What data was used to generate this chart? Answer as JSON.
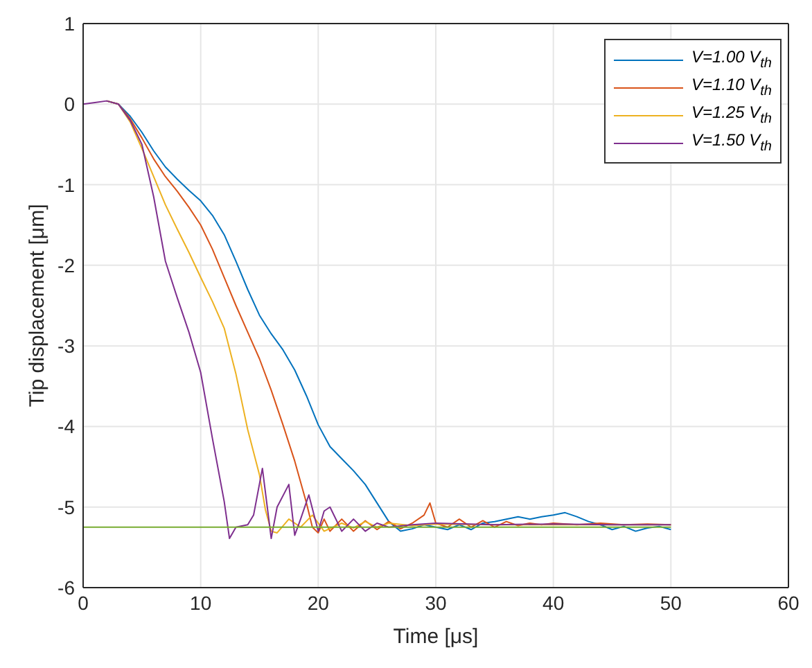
{
  "chart_data": {
    "type": "line",
    "xlabel": "Time [μs]",
    "ylabel": "Tip displacement [μm]",
    "xlim": [
      0,
      60
    ],
    "ylim": [
      -6,
      1
    ],
    "xticks": [
      0,
      10,
      20,
      30,
      40,
      50,
      60
    ],
    "yticks": [
      -6,
      -5,
      -4,
      -3,
      -2,
      -1,
      0,
      1
    ],
    "grid": true,
    "legend": "top right",
    "marker": "none",
    "line_style": "solid",
    "series": [
      {
        "name": "V=1.00 V$_{th}$",
        "color": "#0072bd",
        "x": [
          2,
          3,
          4,
          5,
          6,
          7,
          8,
          9,
          10,
          11,
          12,
          13,
          14,
          15,
          16,
          17,
          18,
          19,
          20,
          21,
          22,
          23,
          24,
          25,
          26,
          27,
          28,
          29,
          30,
          31,
          32,
          33,
          34,
          35,
          36,
          37,
          38,
          39,
          40,
          41,
          42,
          43,
          44,
          45,
          46,
          47,
          48,
          49,
          50
        ],
        "values": [
          0.04,
          0,
          -0.15,
          -0.35,
          -0.58,
          -0.78,
          -0.93,
          -1.07,
          -1.2,
          -1.38,
          -1.62,
          -1.95,
          -2.3,
          -2.62,
          -2.85,
          -3.05,
          -3.3,
          -3.62,
          -3.98,
          -4.25,
          -4.4,
          -4.55,
          -4.72,
          -4.95,
          -5.18,
          -5.3,
          -5.27,
          -5.22,
          -5.25,
          -5.28,
          -5.22,
          -5.28,
          -5.2,
          -5.18,
          -5.15,
          -5.12,
          -5.15,
          -5.12,
          -5.1,
          -5.07,
          -5.12,
          -5.18,
          -5.22,
          -5.28,
          -5.24,
          -5.3,
          -5.26,
          -5.24,
          -5.28
        ]
      },
      {
        "name": "V=1.10 V$_{th}$",
        "color": "#d95319",
        "x": [
          2,
          3,
          4,
          5,
          6,
          7,
          8,
          9,
          10,
          11,
          12,
          13,
          14,
          15,
          16,
          17,
          18,
          19,
          19.5,
          20,
          20.5,
          21,
          22,
          23,
          24,
          25,
          26,
          27,
          28,
          29,
          29.5,
          30,
          31,
          32,
          33,
          34,
          35,
          36,
          37,
          38,
          39,
          40,
          42,
          44,
          46,
          48,
          50
        ],
        "values": [
          0.04,
          0,
          -0.18,
          -0.42,
          -0.68,
          -0.9,
          -1.08,
          -1.28,
          -1.5,
          -1.8,
          -2.15,
          -2.5,
          -2.83,
          -3.16,
          -3.55,
          -3.98,
          -4.43,
          -4.95,
          -5.25,
          -5.32,
          -5.15,
          -5.3,
          -5.15,
          -5.3,
          -5.17,
          -5.28,
          -5.18,
          -5.27,
          -5.2,
          -5.1,
          -4.95,
          -5.2,
          -5.25,
          -5.15,
          -5.25,
          -5.17,
          -5.25,
          -5.18,
          -5.23,
          -5.2,
          -5.22,
          -5.2,
          -5.22,
          -5.2,
          -5.22,
          -5.21,
          -5.22
        ]
      },
      {
        "name": "V=1.25 V$_{th}$",
        "color": "#edb120",
        "x": [
          2,
          3,
          4,
          5,
          6,
          7,
          8,
          9,
          10,
          11,
          12,
          13,
          14,
          15,
          15.5,
          16,
          16.5,
          17.5,
          18.5,
          19.5,
          20.5,
          22,
          23,
          24,
          25,
          26,
          28,
          30,
          35,
          40,
          45,
          50
        ],
        "values": [
          0.04,
          0,
          -0.22,
          -0.55,
          -0.9,
          -1.25,
          -1.55,
          -1.84,
          -2.15,
          -2.45,
          -2.78,
          -3.35,
          -4.04,
          -4.6,
          -5.03,
          -5.3,
          -5.32,
          -5.15,
          -5.25,
          -5.1,
          -5.3,
          -5.2,
          -5.26,
          -5.18,
          -5.25,
          -5.2,
          -5.23,
          -5.21,
          -5.22,
          -5.22,
          -5.22,
          -5.22
        ]
      },
      {
        "name": "V=1.50 V$_{th}$",
        "color": "#7e2f8e",
        "x": [
          0,
          1,
          2,
          3,
          4,
          5,
          6,
          7,
          8,
          9,
          10,
          11,
          12,
          12.45,
          13,
          14,
          14.5,
          15.25,
          16,
          16.5,
          17.5,
          18,
          18.5,
          19.2,
          20,
          20.5,
          21,
          22,
          23,
          24,
          25,
          26,
          28,
          30,
          35,
          40,
          45,
          50
        ],
        "values": [
          0,
          0.02,
          0.04,
          0,
          -0.2,
          -0.5,
          -1.15,
          -1.95,
          -2.4,
          -2.83,
          -3.33,
          -4.15,
          -4.93,
          -5.39,
          -5.25,
          -5.22,
          -5.1,
          -4.52,
          -5.39,
          -5.0,
          -4.72,
          -5.35,
          -5.15,
          -4.85,
          -5.3,
          -5.05,
          -5.0,
          -5.3,
          -5.15,
          -5.3,
          -5.2,
          -5.25,
          -5.22,
          -5.2,
          -5.22,
          -5.21,
          -5.22,
          -5.22
        ]
      },
      {
        "color": "#77ac30",
        "x": [
          0,
          50
        ],
        "values": [
          -5.25,
          -5.25
        ]
      }
    ]
  }
}
